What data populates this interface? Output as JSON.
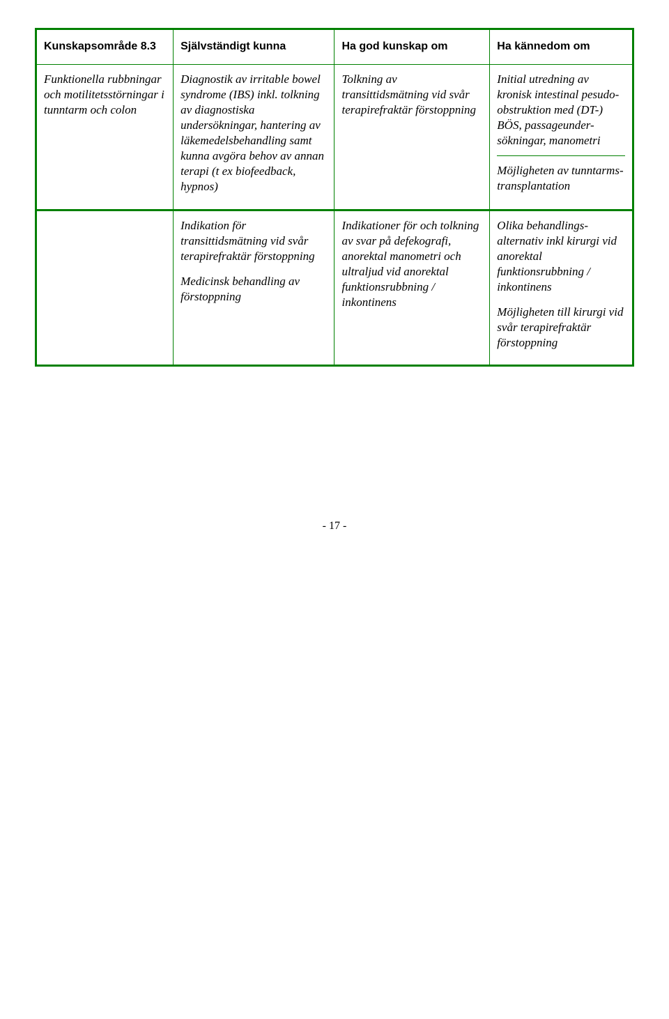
{
  "header": {
    "c1": "Kunskapsområde 8.3",
    "c2": "Självständigt kunna",
    "c3": "Ha god kunskap om",
    "c4": "Ha kännedom om"
  },
  "row1": {
    "c1": "Funktionella rubbningar och motilitetsstörningar i tunntarm och colon",
    "c2a": "Diagnostik av irritable bowel syndrome (IBS) inkl. tolkning av diagnostiska undersökningar, hantering av läkemedelsbehandling samt kunna avgöra behov av annan terapi (t ex biofeedback, hypnos)",
    "c3": "Tolkning av transittidsmätning vid svår terapirefraktär förstoppning",
    "c4_top": "Initial utredning av kronisk intestinal pesudo-obstruktion med (DT-) BÖS, passageunder-sökningar, manometri",
    "c4_bot": "Möjligheten av tunntarms-transplantation"
  },
  "row2": {
    "c2_top": "Indikation för transittidsmätning vid svår terapirefraktär förstoppning",
    "c2_bot": "Medicinsk behandling av förstoppning",
    "c3": "Indikationer för och tolkning av svar på defekografi, anorektal manometri och ultraljud vid anorektal funktionsrubbning / inkontinens",
    "c4_top": "Olika behandlings-alternativ inkl kirurgi vid anorektal funktionsrubbning / inkontinens",
    "c4_bot": "Möjligheten till kirurgi vid svår terapirefraktär förstoppning"
  },
  "page_number": "- 17 -"
}
